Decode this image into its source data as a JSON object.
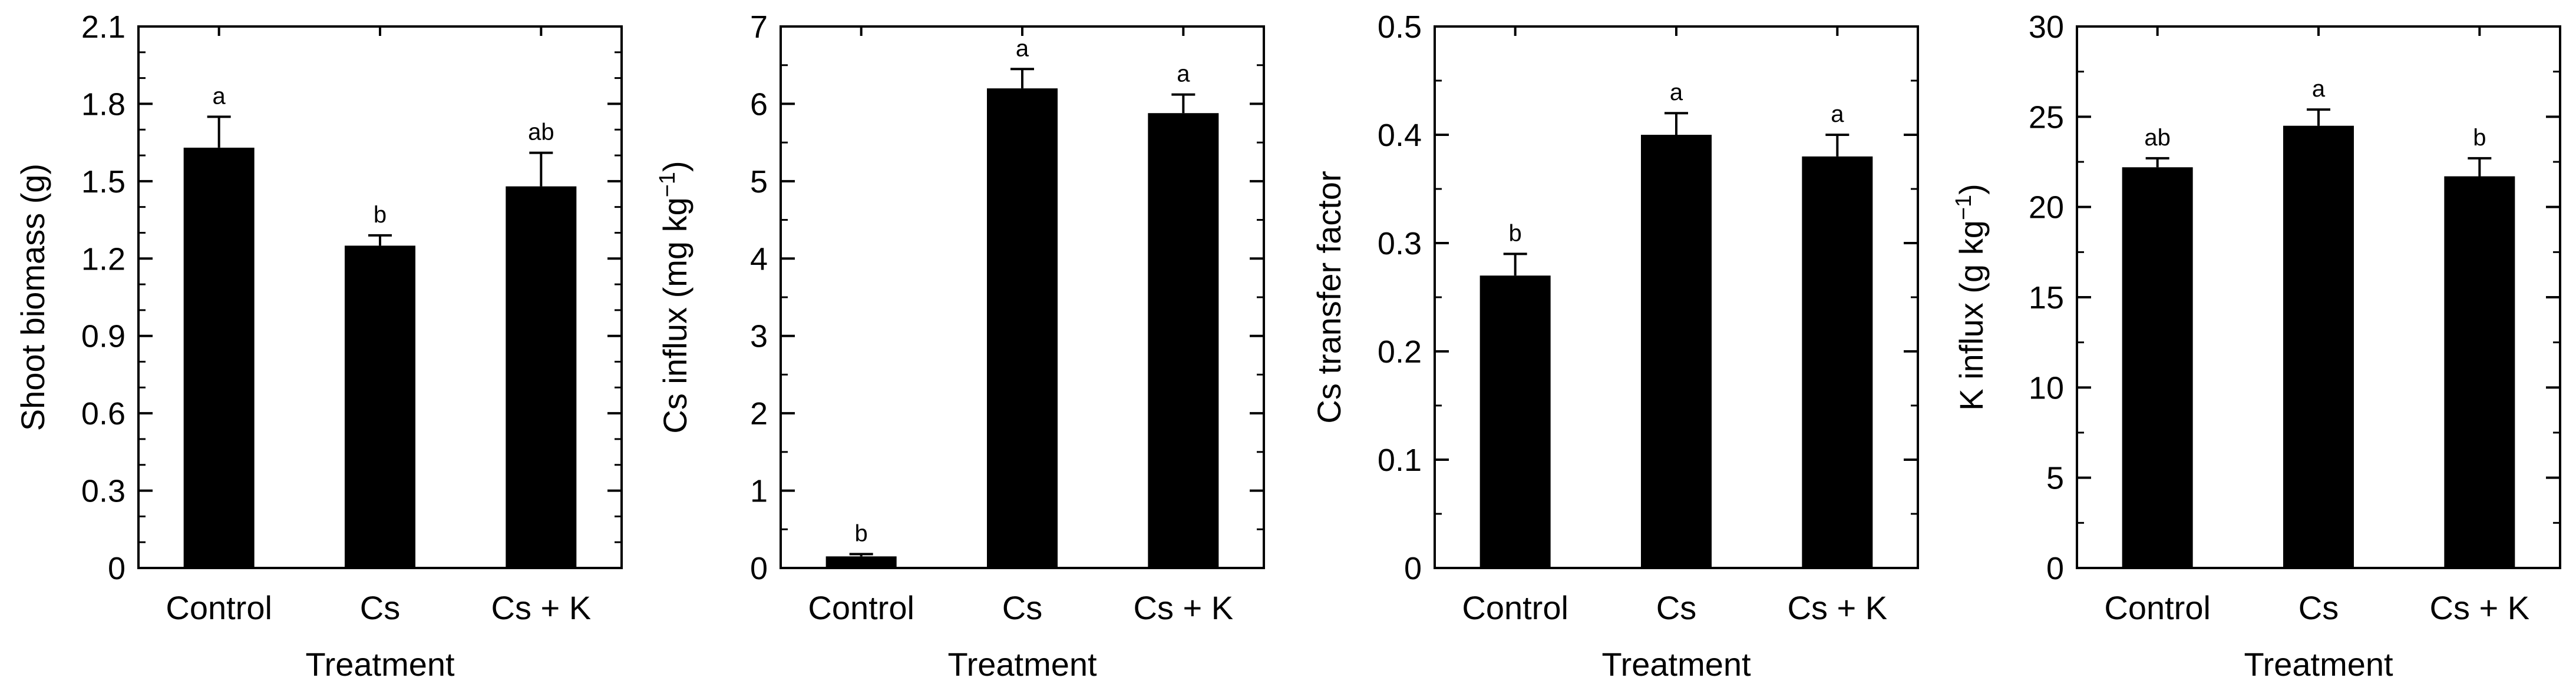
{
  "figure": {
    "colors": {
      "bar": "#000000",
      "axis": "#000000",
      "background": "#ffffff"
    }
  },
  "chart_data": [
    {
      "type": "bar",
      "categories": [
        "Control",
        "Cs",
        "Cs + K"
      ],
      "values": [
        1.63,
        1.25,
        1.48
      ],
      "errors": [
        0.12,
        0.04,
        0.13
      ],
      "letters": [
        "a",
        "b",
        "ab"
      ],
      "xlabel": "Treatment",
      "ylabel": "Shoot biomass (g)",
      "ylim": [
        0,
        2.1
      ],
      "yticks": [
        0,
        0.3,
        0.6,
        0.9,
        1.2,
        1.5,
        1.8,
        2.1
      ],
      "ytick_labels": [
        "0",
        "0.3",
        "0.6",
        "0.9",
        "1.2",
        "1.5",
        "1.8",
        "2.1"
      ],
      "minor_step": 0.1
    },
    {
      "type": "bar",
      "categories": [
        "Control",
        "Cs",
        "Cs + K"
      ],
      "values": [
        0.15,
        6.2,
        5.88
      ],
      "errors": [
        0.03,
        0.25,
        0.24
      ],
      "letters": [
        "b",
        "a",
        "a"
      ],
      "xlabel": "Treatment",
      "ylabel": "Cs influx (mg kg−1)",
      "ylabel_parts": [
        "Cs influx (mg kg",
        "−1",
        ")"
      ],
      "ylim": [
        0,
        7
      ],
      "yticks": [
        0,
        1,
        2,
        3,
        4,
        5,
        6,
        7
      ],
      "ytick_labels": [
        "0",
        "1",
        "2",
        "3",
        "4",
        "5",
        "6",
        "7"
      ],
      "minor_step": 0.5
    },
    {
      "type": "bar",
      "categories": [
        "Control",
        "Cs",
        "Cs + K"
      ],
      "values": [
        0.27,
        0.4,
        0.38
      ],
      "errors": [
        0.02,
        0.02,
        0.02
      ],
      "letters": [
        "b",
        "a",
        "a"
      ],
      "xlabel": "Treatment",
      "ylabel": "Cs transfer factor",
      "ylim": [
        0,
        0.5
      ],
      "yticks": [
        0,
        0.1,
        0.2,
        0.3,
        0.4,
        0.5
      ],
      "ytick_labels": [
        "0",
        "0.1",
        "0.2",
        "0.3",
        "0.4",
        "0.5"
      ],
      "minor_step": 0.05
    },
    {
      "type": "bar",
      "categories": [
        "Control",
        "Cs",
        "Cs + K"
      ],
      "values": [
        22.2,
        24.5,
        21.7
      ],
      "errors": [
        0.5,
        0.9,
        1.0
      ],
      "letters": [
        "ab",
        "a",
        "b"
      ],
      "xlabel": "Treatment",
      "ylabel": "K influx (g kg−1)",
      "ylabel_parts": [
        "K influx (g kg",
        "−1",
        ")"
      ],
      "ylim": [
        0,
        30
      ],
      "yticks": [
        0,
        5,
        10,
        15,
        20,
        25,
        30
      ],
      "ytick_labels": [
        "0",
        "5",
        "10",
        "15",
        "20",
        "25",
        "30"
      ],
      "minor_step": 2.5
    }
  ]
}
